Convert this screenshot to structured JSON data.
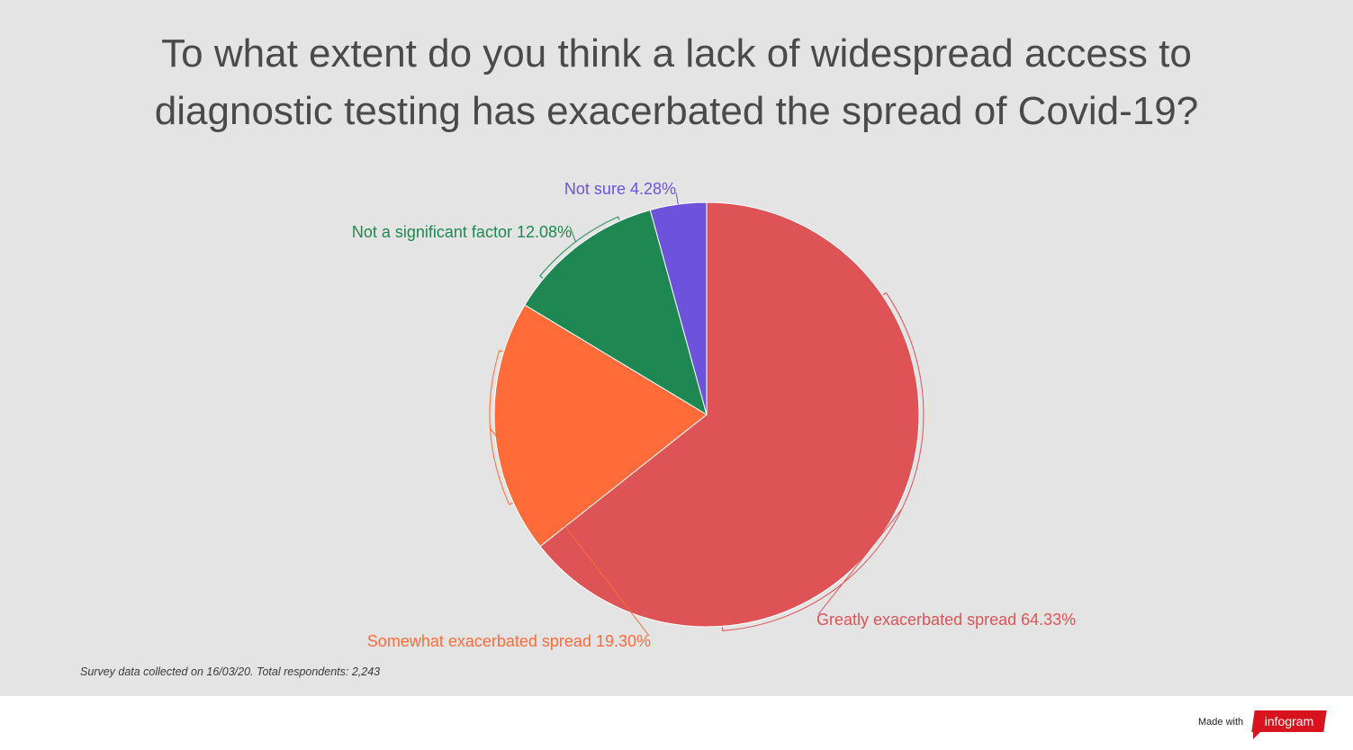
{
  "chart_data": {
    "type": "pie",
    "title_lines": [
      "To what extent do you think a lack of widespread access to",
      "diagnostic testing has exacerbated the spread of Covid-19?"
    ],
    "slices": [
      {
        "label": "Greatly exacerbated spread 64.33%",
        "value": 64.33,
        "color": "#dd5356"
      },
      {
        "label": "Somewhat exacerbated spread 19.30%",
        "value": 19.3,
        "color": "#ff6b39"
      },
      {
        "label": "Not a significant factor 12.08%",
        "value": 12.08,
        "color": "#1f8852"
      },
      {
        "label": "Not sure 4.28%",
        "value": 4.28,
        "color": "#6d53dc"
      }
    ]
  },
  "footnote": "Survey data collected on 16/03/20. Total respondents: 2,243",
  "branding": {
    "made_with": "Made with",
    "logo_text": "infogram"
  }
}
